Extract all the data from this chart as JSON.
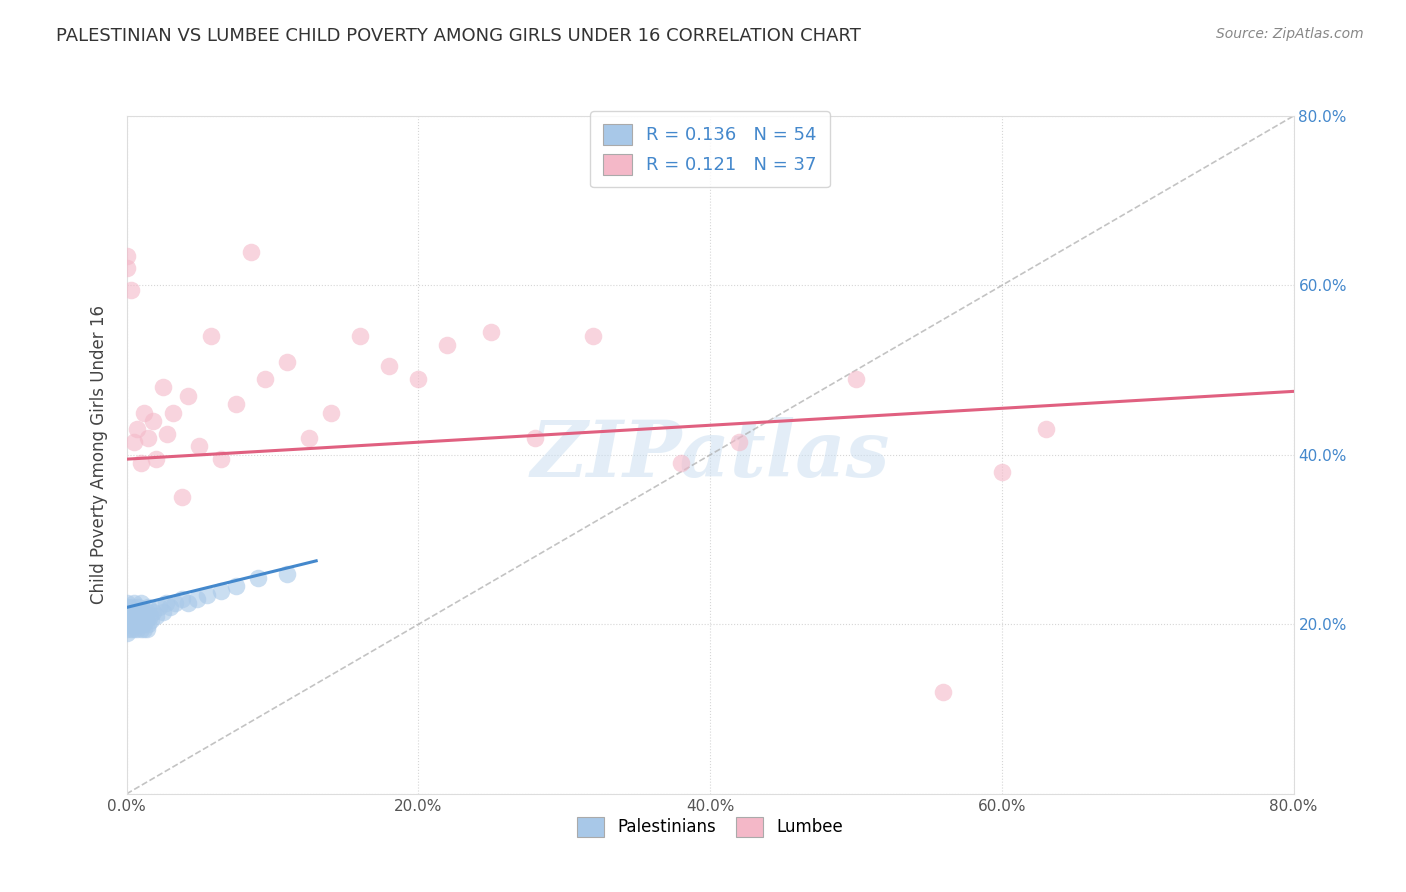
{
  "title": "PALESTINIAN VS LUMBEE CHILD POVERTY AMONG GIRLS UNDER 16 CORRELATION CHART",
  "source": "Source: ZipAtlas.com",
  "ylabel": "Child Poverty Among Girls Under 16",
  "watermark": "ZIPatlas",
  "xlim": [
    0.0,
    0.8
  ],
  "ylim": [
    0.0,
    0.8
  ],
  "xticks": [
    0.0,
    0.2,
    0.4,
    0.6,
    0.8
  ],
  "yticks": [
    0.0,
    0.2,
    0.4,
    0.6,
    0.8
  ],
  "xticklabels": [
    "0.0%",
    "20.0%",
    "40.0%",
    "60.0%",
    "80.0%"
  ],
  "right_yticklabels": [
    "",
    "20.0%",
    "40.0%",
    "60.0%",
    "80.0%"
  ],
  "palestinians_R": 0.136,
  "palestinians_N": 54,
  "lumbee_R": 0.121,
  "lumbee_N": 37,
  "blue_scatter_color": "#a8c8e8",
  "pink_scatter_color": "#f4b8c8",
  "blue_line_color": "#4488cc",
  "pink_line_color": "#e06080",
  "diag_line_color": "#aaaaaa",
  "grid_color": "#cccccc",
  "background_color": "#ffffff",
  "palestinians_x": [
    0.0,
    0.0,
    0.0,
    0.0,
    0.0,
    0.0,
    0.0,
    0.0,
    0.002,
    0.002,
    0.003,
    0.003,
    0.004,
    0.004,
    0.005,
    0.005,
    0.005,
    0.006,
    0.006,
    0.007,
    0.007,
    0.008,
    0.008,
    0.009,
    0.009,
    0.01,
    0.01,
    0.01,
    0.011,
    0.011,
    0.012,
    0.012,
    0.013,
    0.014,
    0.014,
    0.015,
    0.015,
    0.016,
    0.017,
    0.018,
    0.02,
    0.022,
    0.025,
    0.027,
    0.03,
    0.033,
    0.038,
    0.042,
    0.048,
    0.055,
    0.065,
    0.075,
    0.09,
    0.11
  ],
  "palestinians_y": [
    0.2,
    0.21,
    0.195,
    0.215,
    0.205,
    0.22,
    0.19,
    0.225,
    0.2,
    0.215,
    0.195,
    0.21,
    0.205,
    0.22,
    0.195,
    0.21,
    0.225,
    0.2,
    0.215,
    0.195,
    0.21,
    0.205,
    0.22,
    0.2,
    0.215,
    0.195,
    0.21,
    0.225,
    0.2,
    0.215,
    0.195,
    0.21,
    0.205,
    0.195,
    0.215,
    0.2,
    0.22,
    0.21,
    0.205,
    0.215,
    0.21,
    0.22,
    0.215,
    0.225,
    0.22,
    0.225,
    0.23,
    0.225,
    0.23,
    0.235,
    0.24,
    0.245,
    0.255,
    0.26
  ],
  "lumbee_x": [
    0.0,
    0.0,
    0.003,
    0.005,
    0.007,
    0.01,
    0.012,
    0.015,
    0.018,
    0.02,
    0.025,
    0.028,
    0.032,
    0.038,
    0.042,
    0.05,
    0.058,
    0.065,
    0.075,
    0.085,
    0.095,
    0.11,
    0.125,
    0.14,
    0.16,
    0.18,
    0.2,
    0.22,
    0.25,
    0.28,
    0.32,
    0.38,
    0.42,
    0.5,
    0.56,
    0.6,
    0.63
  ],
  "lumbee_y": [
    0.62,
    0.635,
    0.595,
    0.415,
    0.43,
    0.39,
    0.45,
    0.42,
    0.44,
    0.395,
    0.48,
    0.425,
    0.45,
    0.35,
    0.47,
    0.41,
    0.54,
    0.395,
    0.46,
    0.64,
    0.49,
    0.51,
    0.42,
    0.45,
    0.54,
    0.505,
    0.49,
    0.53,
    0.545,
    0.42,
    0.54,
    0.39,
    0.415,
    0.49,
    0.12,
    0.38,
    0.43
  ],
  "blue_line_x0": 0.0,
  "blue_line_x1": 0.13,
  "blue_line_y0": 0.22,
  "blue_line_y1": 0.275,
  "pink_line_x0": 0.0,
  "pink_line_x1": 0.8,
  "pink_line_y0": 0.395,
  "pink_line_y1": 0.475
}
